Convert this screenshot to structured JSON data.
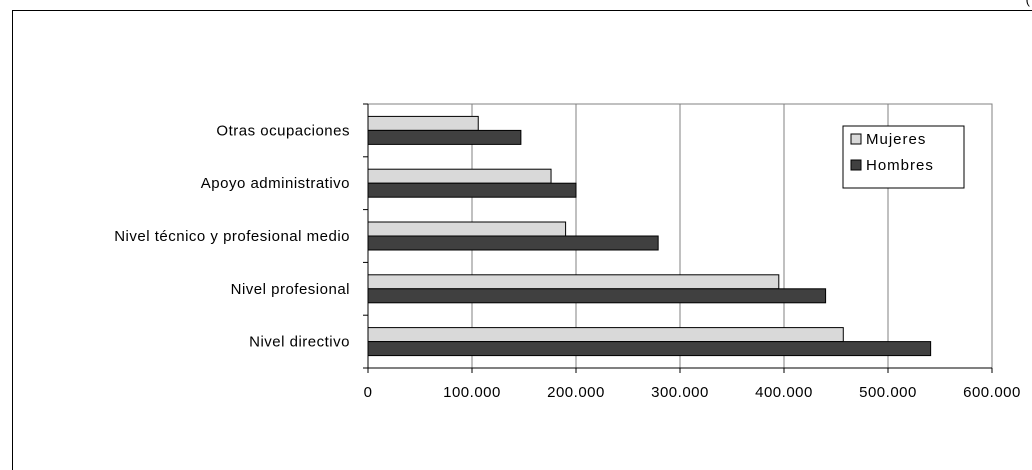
{
  "top_fragment": "(",
  "chart_data": {
    "type": "bar",
    "orientation": "horizontal",
    "categories": [
      "Otras ocupaciones",
      "Apoyo administrativo",
      "Nivel técnico y profesional medio",
      "Nivel profesional",
      "Nivel directivo"
    ],
    "series": [
      {
        "name": "Mujeres",
        "color": "#d9d9d9",
        "values": [
          106000,
          176000,
          190000,
          395000,
          457000
        ]
      },
      {
        "name": "Hombres",
        "color": "#404040",
        "values": [
          147000,
          200000,
          279000,
          440000,
          541000
        ]
      }
    ],
    "xlim": [
      0,
      600000
    ],
    "xticks": [
      0,
      100000,
      200000,
      300000,
      400000,
      500000,
      600000
    ],
    "xtick_labels": [
      "0",
      "100.000",
      "200.000",
      "300.000",
      "400.000",
      "500.000",
      "600.000"
    ],
    "grid": "vertical",
    "legend_position": "top-right",
    "title": "",
    "xlabel": "",
    "ylabel": ""
  }
}
